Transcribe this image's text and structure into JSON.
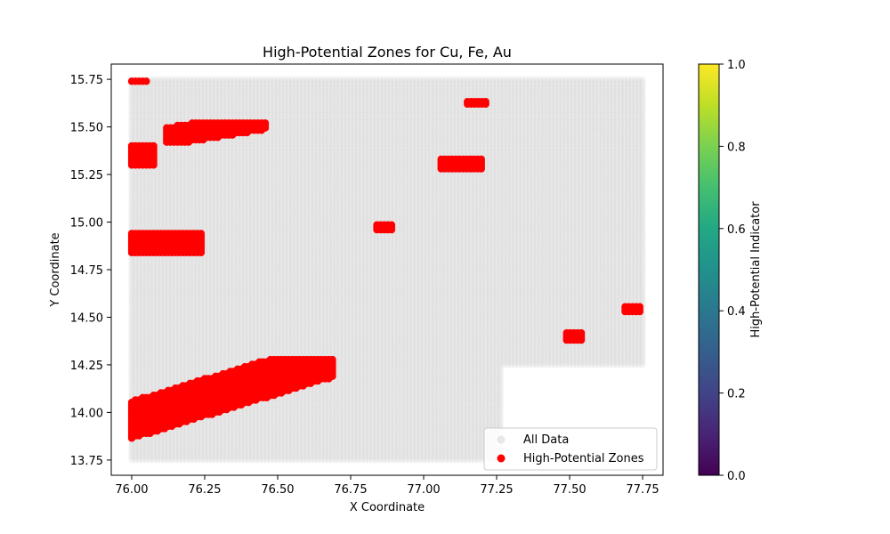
{
  "chart_data": {
    "type": "scatter",
    "title": "High-Potential Zones for Cu, Fe, Au",
    "xlabel": "X Coordinate",
    "ylabel": "Y Coordinate",
    "xlim": [
      75.93,
      77.82
    ],
    "ylim": [
      13.67,
      15.83
    ],
    "xticks": [
      76.0,
      76.25,
      76.5,
      76.75,
      77.0,
      77.25,
      77.5,
      77.75
    ],
    "xtick_labels": [
      "76.00",
      "76.25",
      "76.50",
      "76.75",
      "77.00",
      "77.25",
      "77.50",
      "77.75"
    ],
    "yticks": [
      13.75,
      14.0,
      14.25,
      14.5,
      14.75,
      15.0,
      15.25,
      15.5,
      15.75
    ],
    "ytick_labels": [
      "13.75",
      "14.00",
      "14.25",
      "14.50",
      "14.75",
      "15.00",
      "15.25",
      "15.50",
      "15.75"
    ],
    "grid": false,
    "legend_placement": "lower-right",
    "legend": [
      "All Data",
      "High-Potential Zones"
    ],
    "series": [
      {
        "name": "All Data",
        "color": "#d3d3d3",
        "marker": "circle",
        "grid_fill": {
          "x_range": [
            76.0,
            77.75
          ],
          "y_range": [
            13.75,
            15.75
          ],
          "step": 0.0125,
          "excluded_region": {
            "x_min": 77.27,
            "y_max": 14.24
          }
        }
      },
      {
        "name": "High-Potential Zones",
        "color": "#ff0000",
        "marker": "circle",
        "clusters": [
          {
            "x": [
              76.0,
              76.05
            ],
            "y": [
              15.74,
              15.74
            ]
          },
          {
            "x": [
              76.0,
              76.08
            ],
            "y": [
              15.3,
              15.4
            ]
          },
          {
            "x": [
              76.0,
              76.24
            ],
            "y": [
              14.84,
              14.95
            ]
          },
          {
            "x": [
              76.12,
              76.46
            ],
            "y": [
              15.42,
              15.53
            ]
          },
          {
            "x": [
              76.0,
              76.69
            ],
            "y": [
              13.84,
              14.28
            ]
          },
          {
            "x": [
              76.84,
              76.9
            ],
            "y": [
              14.96,
              14.99
            ]
          },
          {
            "x": [
              77.06,
              77.2
            ],
            "y": [
              15.28,
              15.34
            ]
          },
          {
            "x": [
              77.15,
              77.22
            ],
            "y": [
              15.62,
              15.64
            ]
          },
          {
            "x": [
              77.49,
              77.55
            ],
            "y": [
              14.38,
              14.42
            ]
          },
          {
            "x": [
              77.69,
              77.75
            ],
            "y": [
              14.53,
              14.56
            ]
          }
        ]
      }
    ],
    "colorbar": {
      "label": "High-Potential Indicator",
      "colormap": "viridis",
      "range": [
        0.0,
        1.0
      ],
      "ticks": [
        0.0,
        0.2,
        0.4,
        0.6,
        0.8,
        1.0
      ],
      "tick_labels": [
        "0.0",
        "0.2",
        "0.4",
        "0.6",
        "0.8",
        "1.0"
      ]
    }
  }
}
